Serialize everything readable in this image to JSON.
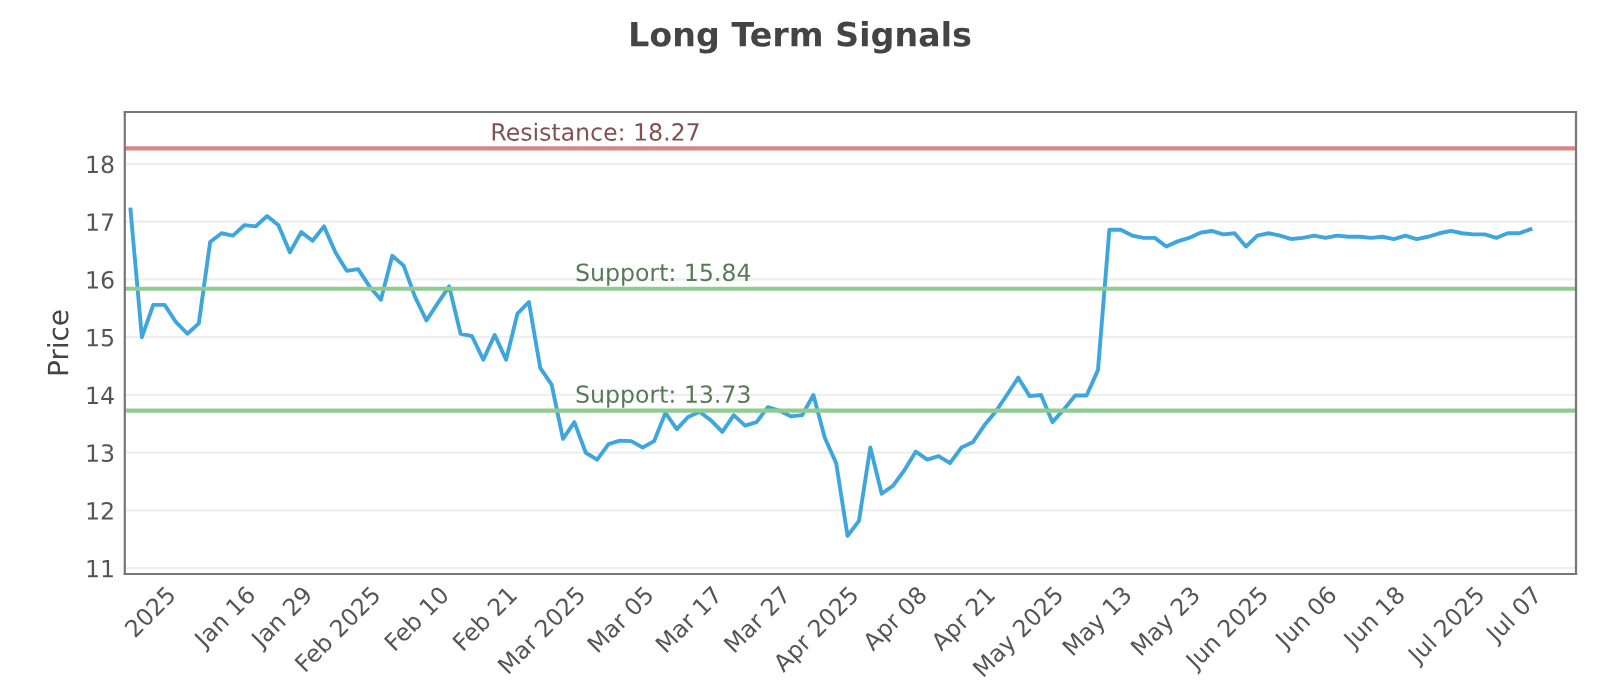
{
  "chart_data": {
    "type": "line",
    "title": "Long Term Signals",
    "ylabel": "Price",
    "categories": [
      null,
      null,
      null,
      "2025",
      null,
      null,
      null,
      null,
      null,
      null,
      "Jan 16",
      null,
      null,
      null,
      null,
      "Jan 29",
      null,
      null,
      null,
      null,
      null,
      "Feb 2025",
      null,
      null,
      null,
      null,
      null,
      "Feb 10",
      null,
      null,
      null,
      null,
      null,
      "Feb 21",
      null,
      null,
      null,
      null,
      null,
      "Mar 2025",
      null,
      null,
      null,
      null,
      null,
      "Mar 05",
      null,
      null,
      null,
      null,
      null,
      "Mar 17",
      null,
      null,
      null,
      null,
      null,
      "Mar 27",
      null,
      null,
      null,
      null,
      null,
      "Apr 2025",
      null,
      null,
      null,
      null,
      null,
      "Apr 08",
      null,
      null,
      null,
      null,
      null,
      "Apr 21",
      null,
      null,
      null,
      null,
      null,
      "May 2025",
      null,
      null,
      null,
      null,
      null,
      "May 13",
      null,
      null,
      null,
      null,
      null,
      "May 23",
      null,
      null,
      null,
      null,
      null,
      "Jun 2025",
      null,
      null,
      null,
      null,
      null,
      "Jun 06",
      null,
      null,
      null,
      null,
      null,
      "Jun 18",
      null,
      null,
      null,
      null,
      null,
      null,
      "Jul 2025",
      null,
      null,
      null,
      null,
      "Jul 07"
    ],
    "series": [
      {
        "color": "#3ea6dc",
        "values": [
          17.21,
          15.0,
          15.56,
          15.56,
          15.26,
          15.06,
          15.24,
          16.65,
          16.8,
          16.76,
          16.94,
          16.92,
          17.1,
          16.94,
          16.47,
          16.82,
          16.67,
          16.92,
          16.47,
          16.15,
          16.18,
          15.88,
          15.65,
          16.41,
          16.24,
          15.7,
          15.29,
          15.59,
          15.88,
          15.06,
          15.02,
          14.61,
          15.04,
          14.61,
          15.41,
          15.61,
          14.47,
          14.18,
          13.24,
          13.53,
          13.0,
          12.88,
          13.15,
          13.21,
          13.2,
          13.09,
          13.2,
          13.69,
          13.41,
          13.62,
          13.71,
          13.56,
          13.36,
          13.65,
          13.47,
          13.53,
          13.79,
          13.73,
          13.63,
          13.65,
          14.0,
          13.26,
          12.82,
          11.56,
          11.82,
          13.09,
          12.29,
          12.43,
          12.7,
          13.02,
          12.88,
          12.94,
          12.82,
          13.09,
          13.18,
          13.47,
          13.71,
          14.0,
          14.3,
          13.98,
          14.0,
          13.53,
          13.75,
          13.99,
          13.99,
          14.43,
          16.86,
          16.86,
          16.76,
          16.72,
          16.72,
          16.57,
          16.66,
          16.72,
          16.81,
          16.84,
          16.78,
          16.8,
          16.57,
          16.76,
          16.8,
          16.76,
          16.7,
          16.72,
          16.76,
          16.72,
          16.76,
          16.74,
          16.74,
          16.72,
          16.74,
          16.7,
          16.76,
          16.7,
          16.74,
          16.8,
          16.84,
          16.8,
          16.78,
          16.78,
          16.72,
          16.8,
          16.8,
          16.87
        ]
      }
    ],
    "ylim": [
      10.9,
      18.9
    ],
    "yticks": [
      11,
      12,
      13,
      14,
      15,
      16,
      17,
      18
    ],
    "grid": "y",
    "line_style": "solid",
    "ref_lines": [
      {
        "axis": "y",
        "value": 18.27,
        "label": "Resistance: 18.27",
        "color": "#d98585"
      },
      {
        "axis": "y",
        "value": 15.84,
        "label": "Support: 15.84",
        "color": "#8fcc8f"
      },
      {
        "axis": "y",
        "value": 13.73,
        "label": "Support: 13.73",
        "color": "#8fcc8f"
      }
    ]
  }
}
